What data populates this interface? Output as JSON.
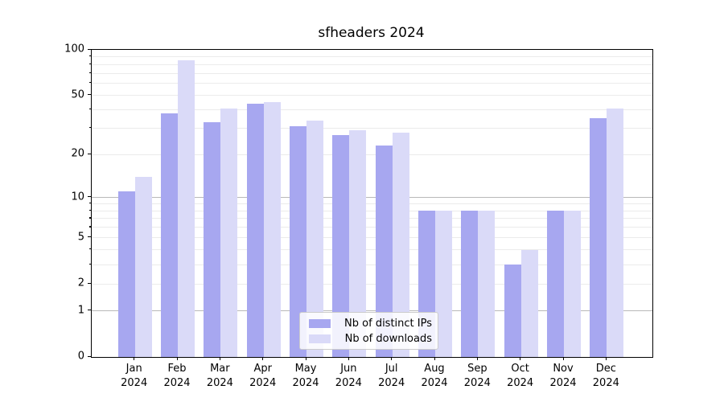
{
  "title": "sfheaders 2024",
  "chart_data": {
    "type": "bar",
    "title": "sfheaders 2024",
    "y_scale": "log1p",
    "categories": [
      "Jan",
      "Feb",
      "Mar",
      "Apr",
      "May",
      "Jun",
      "Jul",
      "Aug",
      "Sep",
      "Oct",
      "Nov",
      "Dec"
    ],
    "x_year_label": "2024",
    "series": [
      {
        "name": "Nb of distinct IPs",
        "color": "#a7a7f0",
        "values": [
          11,
          38,
          33,
          44,
          31,
          27,
          23,
          8,
          8,
          3,
          8,
          35
        ]
      },
      {
        "name": "Nb of downloads",
        "color": "#dadaf8",
        "values": [
          14,
          85,
          41,
          45,
          34,
          29,
          28,
          8,
          8,
          4,
          8,
          41
        ]
      }
    ],
    "y_ticks": [
      100,
      50,
      20,
      10,
      5,
      2,
      1,
      0
    ],
    "y_minor_gridlines": [
      2,
      3,
      4,
      5,
      6,
      7,
      8,
      9,
      20,
      30,
      40,
      50,
      60,
      70,
      80,
      90
    ],
    "y_major_gridlines": [
      1,
      10
    ],
    "ylim": [
      0,
      100
    ],
    "grid": true,
    "legend_position": "lower center",
    "colors": {
      "grid_major": "#b9b9b9",
      "grid_minor": "#ebebeb",
      "axis": "#000000",
      "background": "#ffffff"
    }
  }
}
